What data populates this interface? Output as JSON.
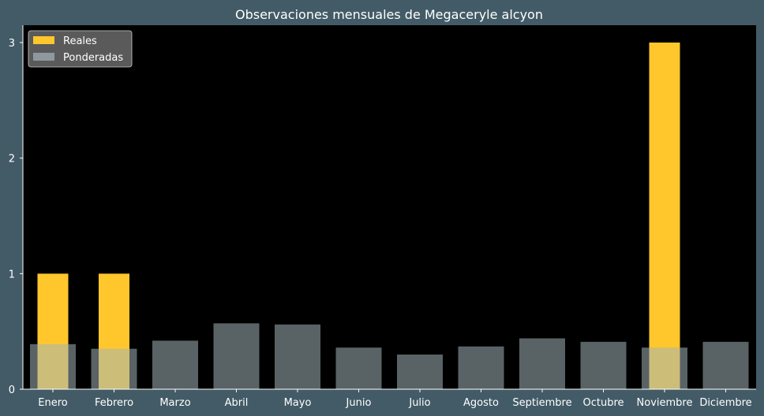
{
  "chart_data": {
    "type": "bar",
    "title": "Observaciones mensuales de Megaceryle alcyon",
    "xlabel": "",
    "ylabel": "",
    "categories": [
      "Enero",
      "Febrero",
      "Marzo",
      "Abril",
      "Mayo",
      "Junio",
      "Julio",
      "Agosto",
      "Septiembre",
      "Octubre",
      "Noviembre",
      "Diciembre"
    ],
    "series": [
      {
        "name": "Reales",
        "color": "#ffc72c",
        "values": [
          1,
          1,
          0,
          0,
          0,
          0,
          0,
          0,
          0,
          0,
          3,
          0
        ]
      },
      {
        "name": "Ponderadas",
        "color": "#a3b4ba",
        "values": [
          0.39,
          0.35,
          0.42,
          0.57,
          0.56,
          0.36,
          0.3,
          0.37,
          0.44,
          0.41,
          0.36,
          0.41
        ]
      }
    ],
    "ylim": [
      0,
      3.15
    ],
    "yticks": [
      0,
      1,
      2,
      3
    ],
    "legend_position": "top-left",
    "grid": false,
    "plot_background": "#000000",
    "figure_background": "#425b67"
  }
}
